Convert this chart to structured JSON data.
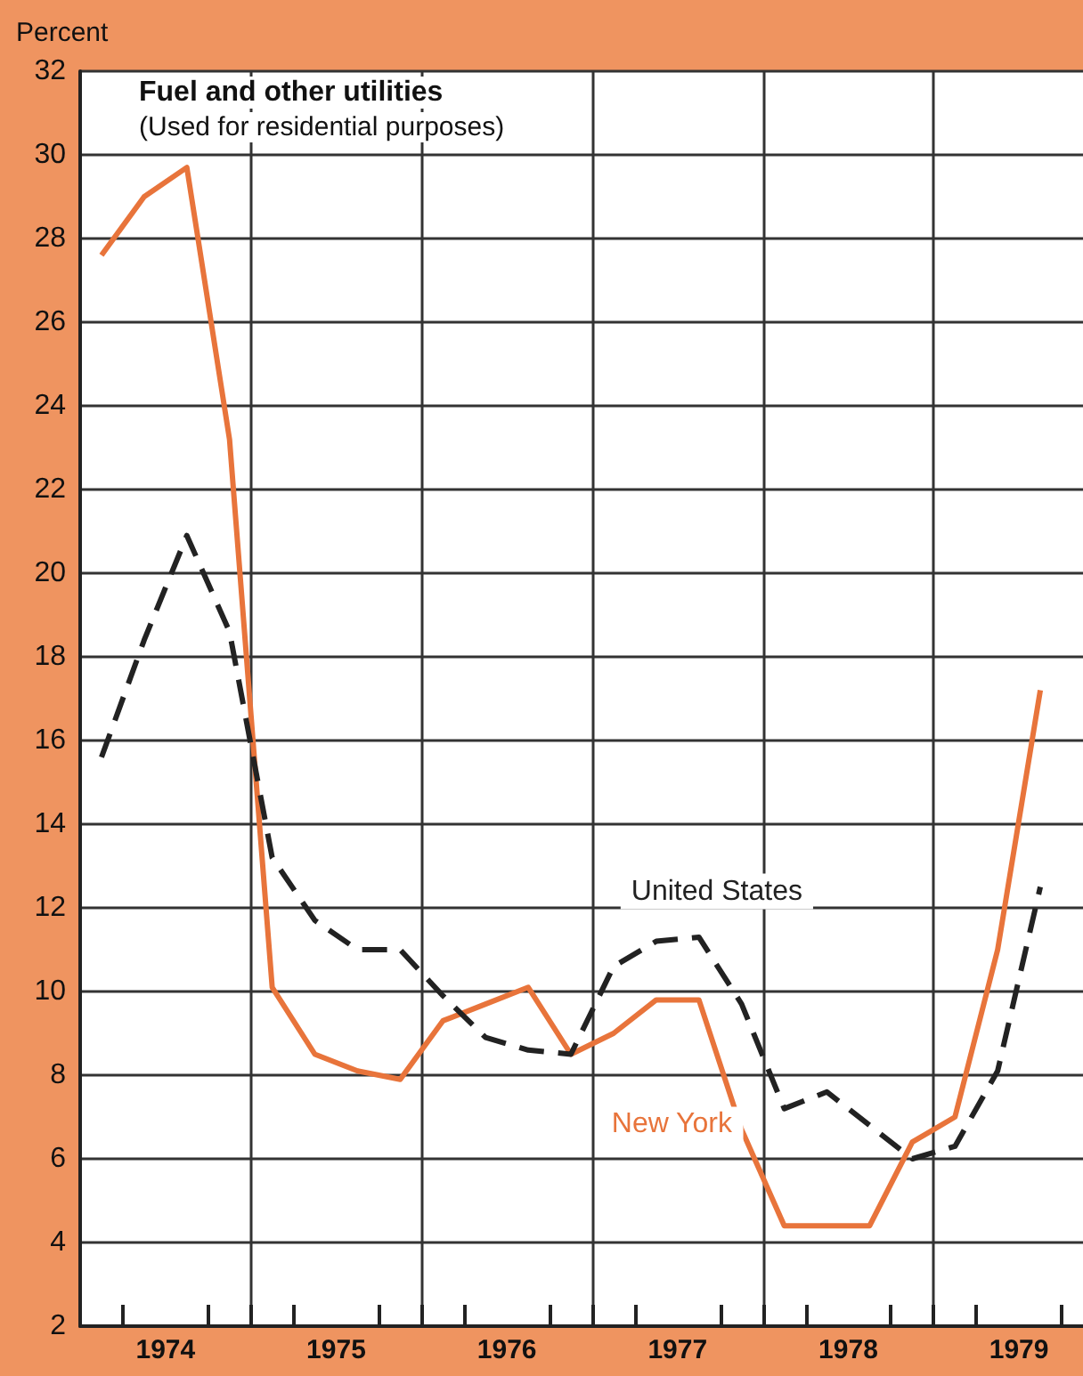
{
  "chart_data": {
    "type": "line",
    "title": "Fuel and other utilities",
    "subtitle": "(Used for residential purposes)",
    "ylabel": "Percent",
    "x": [
      1974.125,
      1974.375,
      1974.625,
      1974.875,
      1975.125,
      1975.375,
      1975.625,
      1975.875,
      1976.125,
      1976.375,
      1976.625,
      1976.875,
      1977.125,
      1977.375,
      1977.625,
      1977.875,
      1978.125,
      1978.375,
      1978.625,
      1978.875,
      1979.125,
      1979.375,
      1979.625
    ],
    "series": [
      {
        "name": "New York",
        "color": "#e8743b",
        "line_style": "solid",
        "values": [
          27.6,
          29.0,
          29.7,
          23.2,
          10.1,
          8.5,
          8.1,
          7.9,
          9.3,
          9.7,
          10.1,
          8.5,
          9.0,
          9.8,
          9.8,
          6.7,
          4.4,
          4.4,
          4.4,
          6.4,
          7.0,
          11.0,
          17.2
        ]
      },
      {
        "name": "United States",
        "color": "#222222",
        "line_style": "dashed",
        "values": [
          15.6,
          18.4,
          20.9,
          18.6,
          13.2,
          11.7,
          11.0,
          11.0,
          9.9,
          8.9,
          8.6,
          8.5,
          10.6,
          11.2,
          11.3,
          9.7,
          7.2,
          7.6,
          6.8,
          6.0,
          6.3,
          8.1,
          12.5
        ]
      }
    ],
    "xlim": [
      1974,
      1979.875
    ],
    "xticks": [
      {
        "value": 1974,
        "label": null
      },
      {
        "value": 1974.25,
        "label": null
      },
      {
        "value": 1974.5,
        "label": "1974"
      },
      {
        "value": 1974.75,
        "label": null
      },
      {
        "value": 1975,
        "label": null
      },
      {
        "value": 1975.25,
        "label": null
      },
      {
        "value": 1975.5,
        "label": "1975"
      },
      {
        "value": 1975.75,
        "label": null
      },
      {
        "value": 1976,
        "label": null
      },
      {
        "value": 1976.25,
        "label": null
      },
      {
        "value": 1976.5,
        "label": "1976"
      },
      {
        "value": 1976.75,
        "label": null
      },
      {
        "value": 1977,
        "label": null
      },
      {
        "value": 1977.25,
        "label": null
      },
      {
        "value": 1977.5,
        "label": "1977"
      },
      {
        "value": 1977.75,
        "label": null
      },
      {
        "value": 1978,
        "label": null
      },
      {
        "value": 1978.25,
        "label": null
      },
      {
        "value": 1978.5,
        "label": "1978"
      },
      {
        "value": 1978.75,
        "label": null
      },
      {
        "value": 1979,
        "label": null
      },
      {
        "value": 1979.25,
        "label": null
      },
      {
        "value": 1979.5,
        "label": "1979"
      },
      {
        "value": 1979.75,
        "label": null
      }
    ],
    "ylim": [
      2,
      32
    ],
    "yticks": [
      2,
      4,
      6,
      8,
      10,
      12,
      14,
      16,
      18,
      20,
      22,
      24,
      26,
      28,
      30,
      32
    ],
    "grid": true,
    "legend": false,
    "marker": "none"
  }
}
